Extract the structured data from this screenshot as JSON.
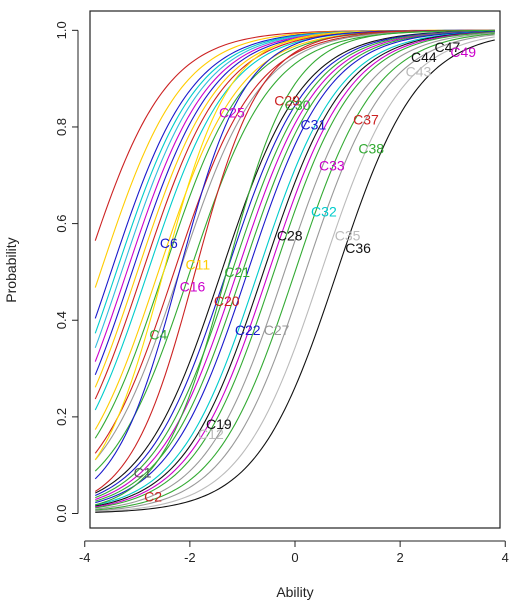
{
  "chart_data": {
    "type": "line",
    "title": "",
    "xlabel": "Ability",
    "ylabel": "Probability",
    "xlim": [
      -3.9,
      3.9
    ],
    "ylim": [
      -0.03,
      1.04
    ],
    "x_ticks": [
      -4,
      -2,
      0,
      2,
      4
    ],
    "x_tick_labels": [
      "-4",
      "-2",
      "0",
      "2",
      "4"
    ],
    "y_ticks": [
      0.0,
      0.2,
      0.4,
      0.6,
      0.8,
      1.0
    ],
    "y_tick_labels": [
      "0.0",
      "0.2",
      "0.4",
      "0.6",
      "0.8",
      "1.0"
    ],
    "grid": false,
    "legend": "none",
    "curve_model": "logistic: p = 1 / (1 + exp(-a * (x - b)))",
    "curves": [
      {
        "a": 1.3,
        "b": -4.0,
        "color": "#cc2222"
      },
      {
        "a": 1.3,
        "b": -3.7,
        "color": "#ffcc00"
      },
      {
        "a": 1.3,
        "b": -3.5,
        "color": "#1a1acc"
      },
      {
        "a": 1.3,
        "b": -3.4,
        "color": "#00cccc"
      },
      {
        "a": 1.3,
        "b": -3.3,
        "color": "#33bbdd"
      },
      {
        "a": 1.3,
        "b": -3.2,
        "color": "#cc00cc"
      },
      {
        "a": 1.3,
        "b": -3.1,
        "color": "#1a1acc"
      },
      {
        "a": 1.3,
        "b": -3.0,
        "color": "#ffcc00"
      },
      {
        "a": 1.3,
        "b": -2.9,
        "color": "#cc2222"
      },
      {
        "a": 1.3,
        "b": -2.8,
        "color": "#00cccc"
      },
      {
        "a": 1.3,
        "b": -2.6,
        "color": "#ffcc00"
      },
      {
        "a": 1.3,
        "b": -2.5,
        "color": "#33aa33"
      },
      {
        "a": 1.3,
        "b": -2.3,
        "color": "#cc2222"
      },
      {
        "a": 1.3,
        "b": -2.2,
        "color": "#999999"
      },
      {
        "a": 1.3,
        "b": -2.0,
        "color": "#33aa33"
      },
      {
        "a": 1.3,
        "b": -1.4,
        "color": "#111111"
      },
      {
        "a": 1.3,
        "b": -1.3,
        "color": "#1a1acc"
      },
      {
        "a": 1.3,
        "b": -1.2,
        "color": "#33aa33"
      },
      {
        "a": 1.3,
        "b": -1.1,
        "color": "#cc00cc"
      },
      {
        "a": 1.3,
        "b": -1.0,
        "color": "#33aa33"
      },
      {
        "a": 1.3,
        "b": -0.9,
        "color": "#1a1acc"
      },
      {
        "a": 1.3,
        "b": -0.7,
        "color": "#00cccc"
      },
      {
        "a": 1.3,
        "b": -0.6,
        "color": "#111111"
      },
      {
        "a": 1.3,
        "b": -0.5,
        "color": "#cc00cc"
      },
      {
        "a": 1.3,
        "b": -0.4,
        "color": "#33aa33"
      },
      {
        "a": 1.3,
        "b": -0.2,
        "color": "#999999"
      },
      {
        "a": 1.3,
        "b": 0.0,
        "color": "#33aa33"
      },
      {
        "a": 1.3,
        "b": 0.2,
        "color": "#999999"
      },
      {
        "a": 1.3,
        "b": 0.5,
        "color": "#bbbbbb"
      },
      {
        "a": 1.3,
        "b": 0.8,
        "color": "#111111"
      },
      {
        "a": 1.6,
        "b": -2.5,
        "color": "#ffdd00"
      },
      {
        "a": 1.6,
        "b": -2.2,
        "color": "#1a1acc"
      },
      {
        "a": 1.6,
        "b": -1.9,
        "color": "#cc2222"
      },
      {
        "a": 1.6,
        "b": -1.3,
        "color": "#33aa33"
      }
    ],
    "labels": [
      {
        "text": "C1",
        "x": -2.9,
        "y": 0.085,
        "color": "#555555"
      },
      {
        "text": "C2",
        "x": -2.7,
        "y": 0.035,
        "color": "#cc2222"
      },
      {
        "text": "C4",
        "x": -2.6,
        "y": 0.37,
        "color": "#33aa33"
      },
      {
        "text": "C6",
        "x": -2.4,
        "y": 0.56,
        "color": "#1a1acc"
      },
      {
        "text": "C11",
        "x": -1.85,
        "y": 0.515,
        "color": "#ffcc00"
      },
      {
        "text": "C16",
        "x": -1.95,
        "y": 0.47,
        "color": "#cc00cc"
      },
      {
        "text": "C20",
        "x": -1.3,
        "y": 0.44,
        "color": "#cc2222"
      },
      {
        "text": "C21",
        "x": -1.1,
        "y": 0.5,
        "color": "#33aa33"
      },
      {
        "text": "C22",
        "x": -0.9,
        "y": 0.38,
        "color": "#1a1acc"
      },
      {
        "text": "C27",
        "x": -0.35,
        "y": 0.38,
        "color": "#999999"
      },
      {
        "text": "C19",
        "x": -1.45,
        "y": 0.185,
        "color": "#111111"
      },
      {
        "text": "C12",
        "x": -1.6,
        "y": 0.165,
        "color": "#bbbbbb"
      },
      {
        "text": "C25",
        "x": -1.2,
        "y": 0.83,
        "color": "#cc00cc"
      },
      {
        "text": "C29",
        "x": -0.15,
        "y": 0.855,
        "color": "#cc2222"
      },
      {
        "text": "C30",
        "x": 0.05,
        "y": 0.845,
        "color": "#33aa33"
      },
      {
        "text": "C31",
        "x": 0.35,
        "y": 0.805,
        "color": "#1a1acc"
      },
      {
        "text": "C37",
        "x": 1.35,
        "y": 0.815,
        "color": "#cc2222"
      },
      {
        "text": "C38",
        "x": 1.45,
        "y": 0.755,
        "color": "#33aa33"
      },
      {
        "text": "C33",
        "x": 0.7,
        "y": 0.72,
        "color": "#cc00cc"
      },
      {
        "text": "C32",
        "x": 0.55,
        "y": 0.625,
        "color": "#00cccc"
      },
      {
        "text": "C28",
        "x": -0.1,
        "y": 0.575,
        "color": "#111111"
      },
      {
        "text": "C35",
        "x": 1.0,
        "y": 0.575,
        "color": "#bbbbbb"
      },
      {
        "text": "C36",
        "x": 1.2,
        "y": 0.55,
        "color": "#111111"
      },
      {
        "text": "C44",
        "x": 2.45,
        "y": 0.945,
        "color": "#111111"
      },
      {
        "text": "C43",
        "x": 2.35,
        "y": 0.915,
        "color": "#bbbbbb"
      },
      {
        "text": "C47",
        "x": 2.9,
        "y": 0.965,
        "color": "#111111"
      },
      {
        "text": "C49",
        "x": 3.2,
        "y": 0.955,
        "color": "#cc00cc"
      }
    ]
  }
}
